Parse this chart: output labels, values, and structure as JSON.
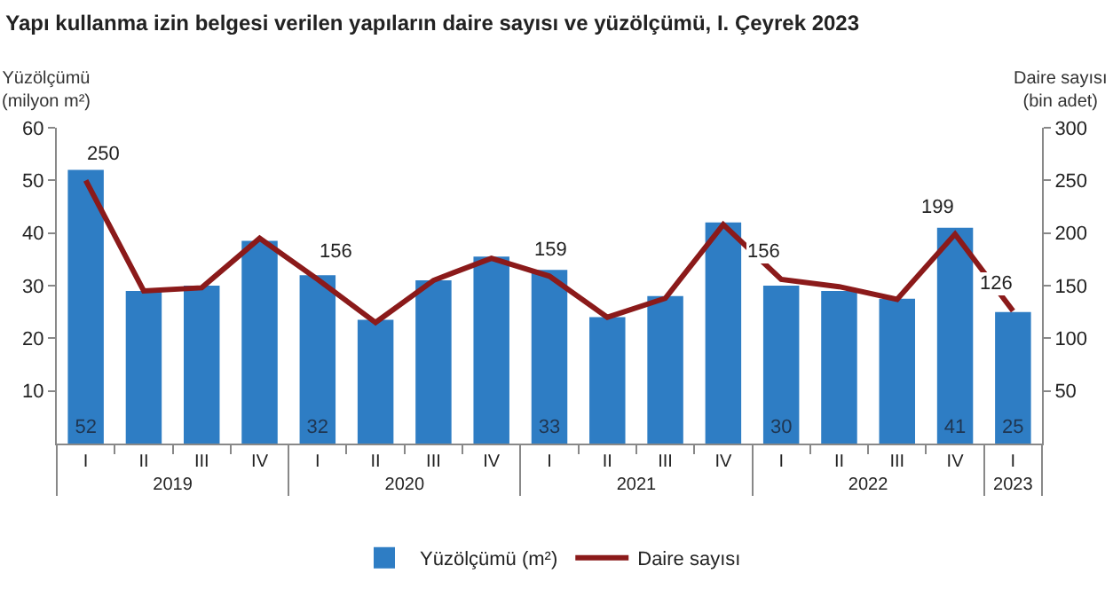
{
  "chart_data": {
    "type": "bar",
    "title": "Yapı kullanma izin belgesi verilen yapıların daire sayısı ve yüzölçümü, I. Çeyrek 2023",
    "ylabel": "Yüzölçümü\n(milyon m²)",
    "y2label": "Daire sayısı\n(bin adet)",
    "categories": [
      "I",
      "II",
      "III",
      "IV",
      "I",
      "II",
      "III",
      "IV",
      "I",
      "II",
      "III",
      "IV",
      "I",
      "II",
      "III",
      "IV",
      "I"
    ],
    "annotations": [
      "2019",
      "2020",
      "2021",
      "2022",
      "2023"
    ],
    "series": [
      {
        "name": "Yüzölçümü (m²)",
        "color": "#2e7dc4",
        "values": [
          52,
          29,
          30,
          38.5,
          32,
          23.5,
          31,
          35.5,
          33,
          24,
          28,
          42,
          30,
          29,
          27.5,
          41,
          25
        ],
        "value_labels": [
          "52",
          null,
          null,
          null,
          "32",
          null,
          null,
          null,
          "33",
          null,
          null,
          null,
          "30",
          null,
          null,
          "41",
          "25"
        ]
      },
      {
        "name": "Daire sayısı",
        "type": "line",
        "axis": "y2",
        "color": "#8b1a1a",
        "values": [
          250,
          145,
          148,
          195,
          156,
          115,
          155,
          176,
          159,
          120,
          138,
          208,
          156,
          149,
          137,
          199,
          126
        ],
        "value_labels": [
          "250",
          null,
          null,
          null,
          "156",
          null,
          null,
          null,
          "159",
          null,
          null,
          null,
          "156",
          null,
          null,
          "199",
          "126"
        ]
      }
    ],
    "ylim": [
      0,
      60
    ],
    "yticks": [
      10,
      20,
      30,
      40,
      50,
      60
    ],
    "y2lim": [
      0,
      300
    ],
    "y2ticks": [
      50,
      100,
      150,
      200,
      250,
      300
    ],
    "grid": false,
    "legend": "bottom",
    "marker": "none"
  }
}
